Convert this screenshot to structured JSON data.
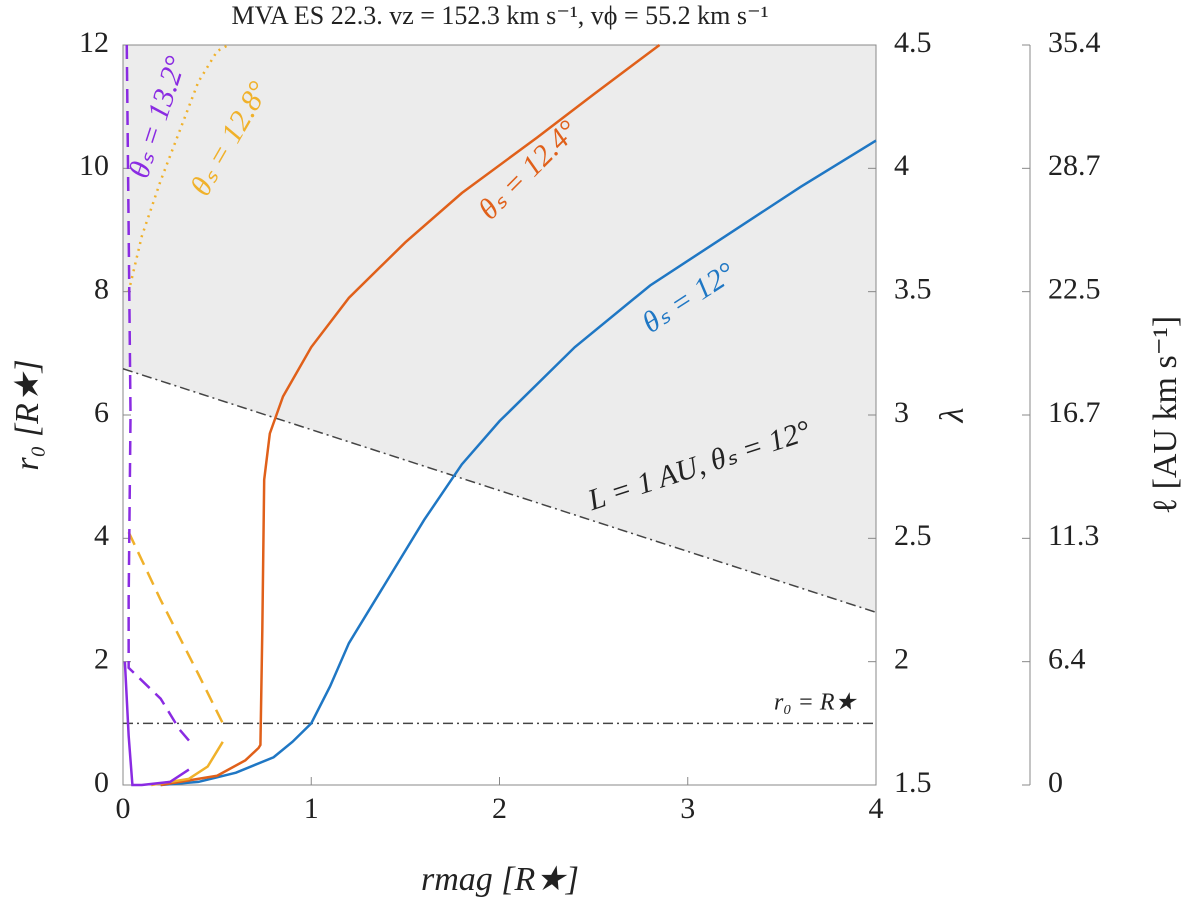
{
  "chart_data": {
    "type": "line",
    "title": "MVA ES 22.3. vz = 152.3 km s⁻¹, vϕ = 55.2 km s⁻¹",
    "x_label": "rmag [R★]",
    "y_label": "r₀ [R★]",
    "y2_label": "λ",
    "y3_label": "ℓ [AU km s⁻¹]",
    "xlim": [
      0,
      4
    ],
    "xticks": [
      0,
      1,
      2,
      3,
      4
    ],
    "ylim": [
      0,
      12
    ],
    "yticks": [
      0,
      2,
      4,
      6,
      8,
      10,
      12
    ],
    "y2lim": [
      1.5,
      4.5
    ],
    "y2ticks": [
      1.5,
      2,
      2.5,
      3,
      3.5,
      4,
      4.5
    ],
    "y3ticks": [
      0,
      6.4,
      11.3,
      16.7,
      22.5,
      28.7,
      35.4
    ],
    "shade_above_line": 0,
    "shade_color": "#ececec",
    "lines": [
      {
        "label": "L = 1 AU, θₛ = 12°",
        "color": "#444444",
        "x": [
          0,
          4
        ],
        "y": [
          6.75,
          2.8
        ]
      },
      {
        "label": "r₀ = R★",
        "color": "#444444",
        "x": [
          0,
          4
        ],
        "y": [
          1,
          1
        ]
      }
    ],
    "series": [
      {
        "label": "θₛ = 12°",
        "color": "#1f77c4",
        "dash": "solid",
        "x": [
          0.2,
          0.4,
          0.6,
          0.8,
          0.9,
          1.0,
          1.1,
          1.2,
          1.4,
          1.6,
          1.8,
          2.0,
          2.4,
          2.8,
          3.2,
          3.6,
          4.0
        ],
        "y": [
          0,
          0.05,
          0.2,
          0.45,
          0.7,
          1.0,
          1.6,
          2.3,
          3.3,
          4.3,
          5.2,
          5.9,
          7.1,
          8.1,
          8.9,
          9.7,
          10.45
        ]
      },
      {
        "label": "θₛ = 12.4°",
        "color": "#e0601a",
        "dash": "solid",
        "x": [
          0.2,
          0.5,
          0.65,
          0.72,
          0.73,
          0.74,
          0.75,
          0.78,
          0.85,
          1.0,
          1.2,
          1.5,
          1.8,
          2.2,
          2.5,
          2.85
        ],
        "y": [
          0,
          0.15,
          0.4,
          0.6,
          0.65,
          2.5,
          4.95,
          5.7,
          6.3,
          7.1,
          7.9,
          8.8,
          9.6,
          10.5,
          11.2,
          12
        ]
      },
      {
        "color": "#f0b12a",
        "dash": "solid",
        "x": [
          0.15,
          0.35,
          0.45,
          0.53
        ],
        "y": [
          0,
          0.1,
          0.3,
          0.7
        ]
      },
      {
        "color": "#f0b12a",
        "dash": "dashed",
        "x": [
          0.03,
          0.2,
          0.4,
          0.53
        ],
        "y": [
          4.1,
          3.0,
          1.8,
          1.0
        ]
      },
      {
        "label": "θₛ = 12.8°",
        "color": "#f0b12a",
        "dash": "dotted",
        "x": [
          0.03,
          0.1,
          0.2,
          0.3,
          0.4,
          0.5,
          0.56
        ],
        "y": [
          8,
          8.9,
          9.8,
          10.6,
          11.4,
          11.9,
          12
        ]
      },
      {
        "color": "#8a2be2",
        "dash": "solid",
        "x": [
          0.01,
          0.03,
          0.05,
          0.1,
          0.25,
          0.35
        ],
        "y": [
          2.0,
          0.8,
          0,
          0,
          0.05,
          0.25
        ]
      },
      {
        "label": "θₛ = 13.2°",
        "color": "#8a2be2",
        "dash": "dashed",
        "x": [
          0.02,
          0.03,
          0.04,
          0.03,
          0.03,
          0.2,
          0.3,
          0.37
        ],
        "y": [
          12,
          9,
          6,
          3,
          1.9,
          1.4,
          0.9,
          0.65
        ]
      }
    ]
  }
}
